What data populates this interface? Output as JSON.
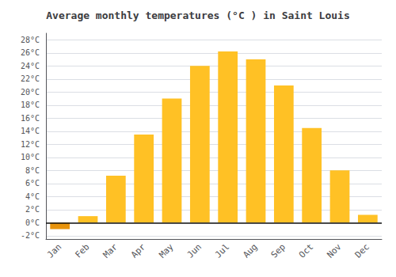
{
  "chart_data": {
    "type": "bar",
    "title": "Average monthly temperatures (°C ) in Saint Louis",
    "categories": [
      "Jan",
      "Feb",
      "Mar",
      "Apr",
      "May",
      "Jun",
      "Jul",
      "Aug",
      "Sep",
      "Oct",
      "Nov",
      "Dec"
    ],
    "values": [
      -1.0,
      1.0,
      7.2,
      13.5,
      19.0,
      24.0,
      26.2,
      25.0,
      21.0,
      14.5,
      8.0,
      1.2
    ],
    "colors": [
      "#E8930A",
      "#FFC125",
      "#FFC125",
      "#FFC125",
      "#FFC125",
      "#FFC125",
      "#FFC125",
      "#FFC125",
      "#FFC125",
      "#FFC125",
      "#FFC125",
      "#FFC125"
    ],
    "ylim": [
      -2.5,
      29
    ],
    "yticks": [
      {
        "value": -2,
        "label": "-2°C"
      },
      {
        "value": 0,
        "label": "0°C"
      },
      {
        "value": 2,
        "label": "2°C"
      },
      {
        "value": 4,
        "label": "4°C"
      },
      {
        "value": 6,
        "label": "6°C"
      },
      {
        "value": 8,
        "label": "8°C"
      },
      {
        "value": 10,
        "label": "10°C"
      },
      {
        "value": 12,
        "label": "12°C"
      },
      {
        "value": 14,
        "label": "14°C"
      },
      {
        "value": 16,
        "label": "16°C"
      },
      {
        "value": 18,
        "label": "18°C"
      },
      {
        "value": 20,
        "label": "20°C"
      },
      {
        "value": 22,
        "label": "22°C"
      },
      {
        "value": 24,
        "label": "24°C"
      },
      {
        "value": 26,
        "label": "26°C"
      },
      {
        "value": 28,
        "label": "28°C"
      }
    ],
    "grid": true
  }
}
